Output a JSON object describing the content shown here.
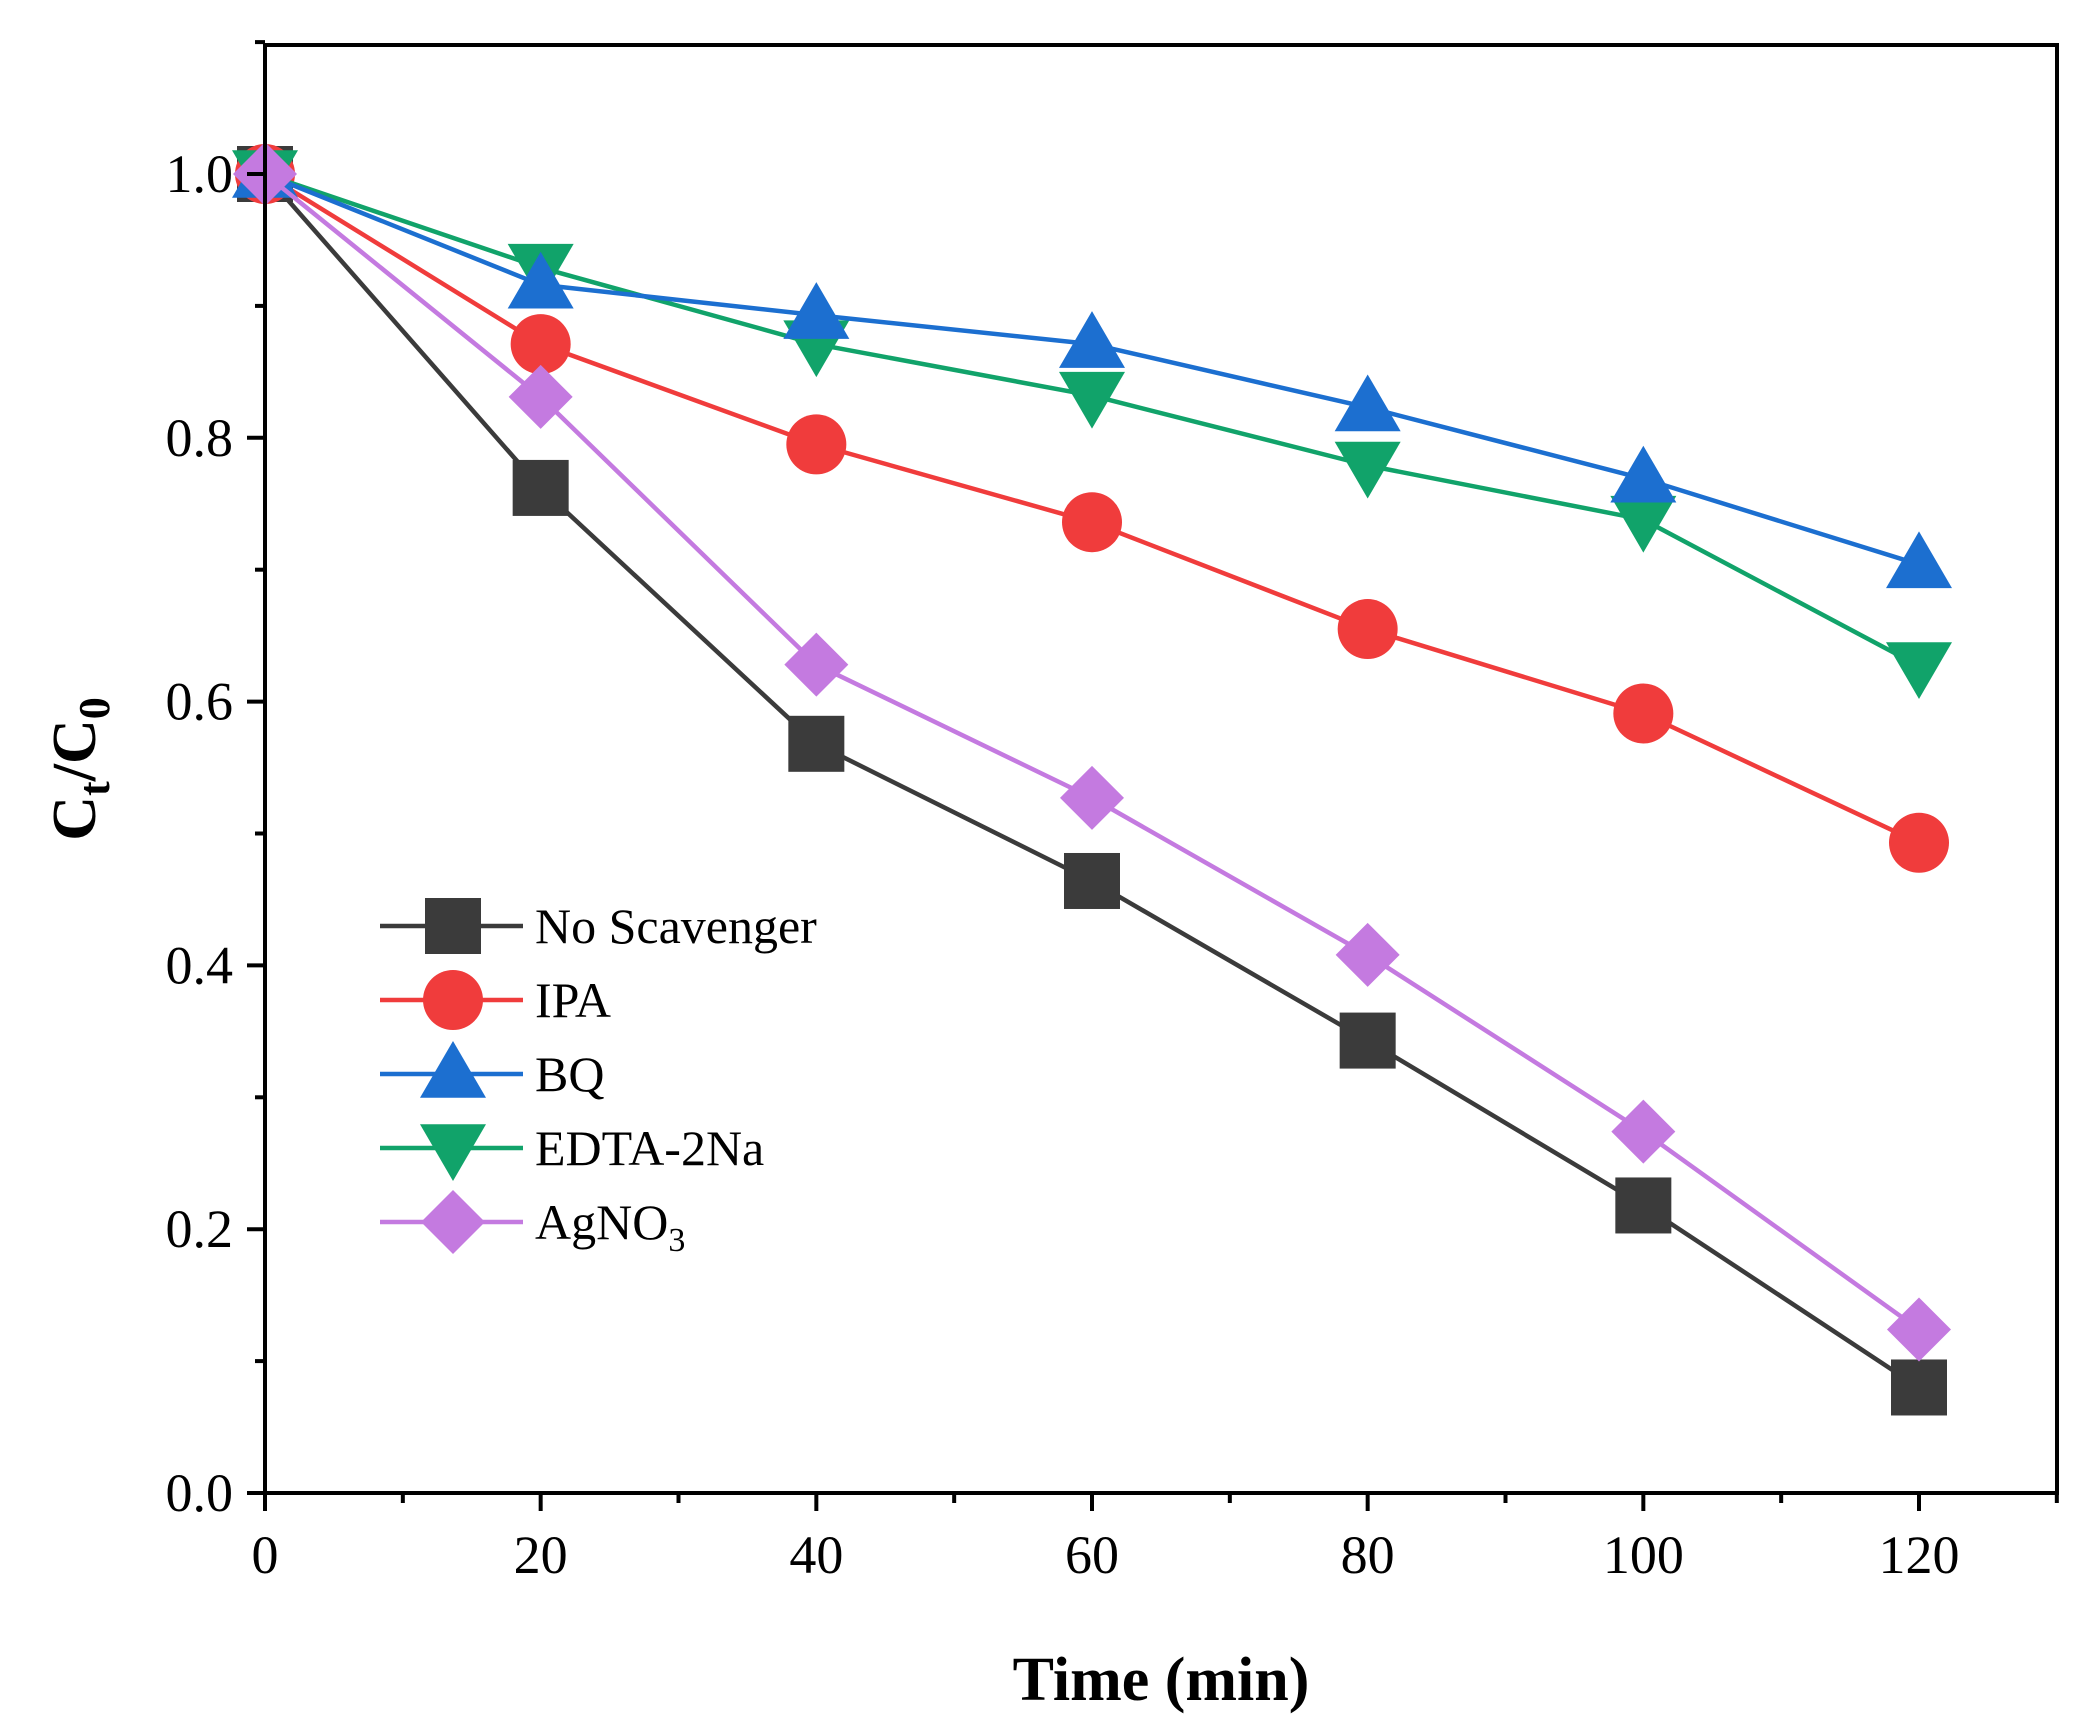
{
  "chart_data": {
    "type": "line",
    "title": "",
    "xlabel": "Time (min)",
    "ylabel": {
      "main": "C",
      "sub1": "t",
      "slash": "/C",
      "sub2": "0"
    },
    "xlim": [
      0,
      130
    ],
    "ylim": [
      0,
      1.1
    ],
    "xticks": [
      0,
      20,
      40,
      60,
      80,
      100,
      120
    ],
    "xtick_labels": [
      "0",
      "20",
      "40",
      "60",
      "80",
      "100",
      "120"
    ],
    "xminor": [
      10,
      30,
      50,
      70,
      90,
      110,
      130
    ],
    "yticks": [
      0,
      0.2,
      0.4,
      0.6,
      0.8,
      1.0
    ],
    "ytick_labels": [
      "0.0",
      "0.2",
      "0.4",
      "0.6",
      "0.8",
      "1.0"
    ],
    "yminor": [
      0.1,
      0.3,
      0.5,
      0.7,
      0.9,
      1.1
    ],
    "grid": false,
    "legend_position": "bottom-left",
    "x": [
      0,
      20,
      40,
      60,
      80,
      100,
      120
    ],
    "series": [
      {
        "name": "No Scavenger",
        "label_main": "No Scavenger",
        "label_sub": "",
        "color": "#3b3b3b",
        "marker": "square",
        "values": [
          1.0,
          0.762,
          0.568,
          0.464,
          0.343,
          0.218,
          0.08
        ]
      },
      {
        "name": "IPA",
        "label_main": "IPA",
        "label_sub": "",
        "color": "#f03c3c",
        "marker": "circle",
        "values": [
          1.0,
          0.871,
          0.795,
          0.736,
          0.655,
          0.591,
          0.493
        ]
      },
      {
        "name": "BQ",
        "label_main": "BQ",
        "label_sub": "",
        "color": "#1c6fd0",
        "marker": "triangle-up",
        "values": [
          1.0,
          0.916,
          0.893,
          0.871,
          0.823,
          0.769,
          0.704
        ]
      },
      {
        "name": "EDTA-2Na",
        "label_main": "EDTA-2Na",
        "label_sub": "",
        "color": "#11a36a",
        "marker": "triangle-down",
        "values": [
          1.0,
          0.929,
          0.871,
          0.832,
          0.779,
          0.738,
          0.627
        ]
      },
      {
        "name": "AgNO3",
        "label_main": "AgNO",
        "label_sub": "3",
        "color": "#c47ae0",
        "marker": "diamond",
        "values": [
          1.0,
          0.831,
          0.628,
          0.527,
          0.408,
          0.274,
          0.124
        ]
      }
    ]
  }
}
